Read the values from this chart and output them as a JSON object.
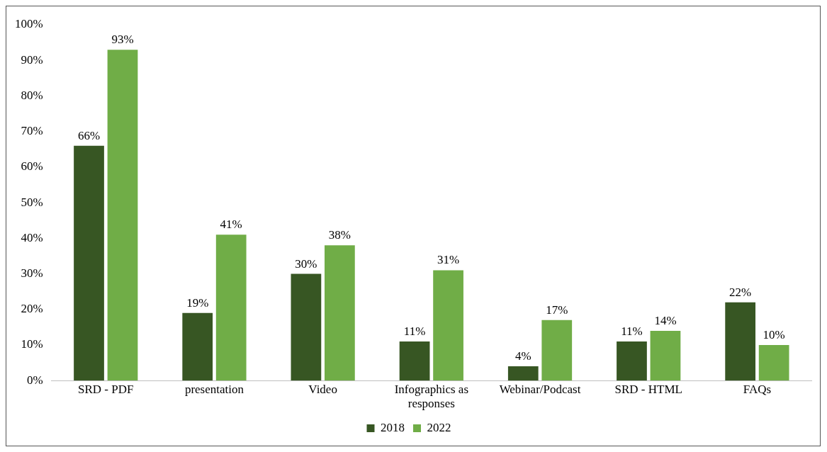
{
  "chart_data": {
    "type": "bar",
    "categories": [
      "SRD - PDF",
      "presentation",
      "Video",
      "Infographics as responses",
      "Webinar/Podcast",
      "SRD - HTML",
      "FAQs"
    ],
    "series": [
      {
        "name": "2018",
        "color": "#375623",
        "values": [
          66,
          19,
          30,
          11,
          4,
          11,
          22
        ],
        "value_labels": [
          "66%",
          "19%",
          "30%",
          "11%",
          "4%",
          "11%",
          "22%"
        ]
      },
      {
        "name": "2022",
        "color": "#70ad47",
        "values": [
          93,
          41,
          38,
          31,
          17,
          14,
          10
        ],
        "value_labels": [
          "93%",
          "41%",
          "38%",
          "31%",
          "17%",
          "14%",
          "10%"
        ]
      }
    ],
    "ylim": [
      0,
      100
    ],
    "yticks": [
      {
        "value": 0,
        "label": "0%"
      },
      {
        "value": 10,
        "label": "10%"
      },
      {
        "value": 20,
        "label": "20%"
      },
      {
        "value": 30,
        "label": "30%"
      },
      {
        "value": 40,
        "label": "40%"
      },
      {
        "value": 50,
        "label": "50%"
      },
      {
        "value": 60,
        "label": "60%"
      },
      {
        "value": 70,
        "label": "70%"
      },
      {
        "value": 80,
        "label": "80%"
      },
      {
        "value": 90,
        "label": "90%"
      },
      {
        "value": 100,
        "label": "100%"
      }
    ],
    "grid": false,
    "legend": "bottom"
  }
}
